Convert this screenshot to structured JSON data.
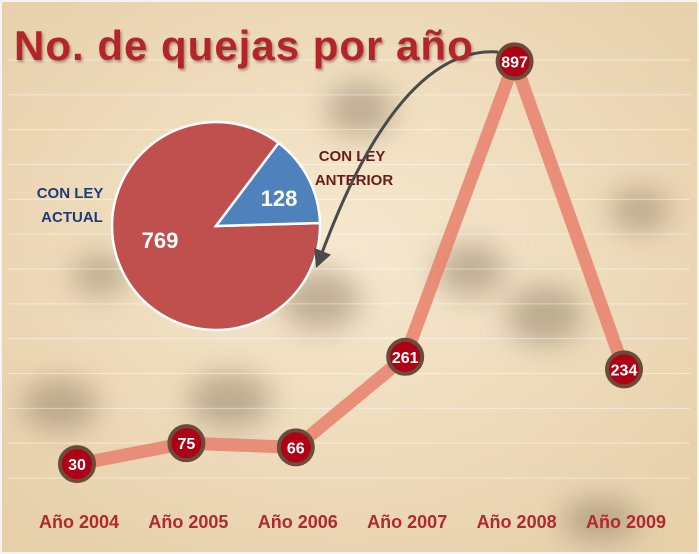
{
  "title": "No. de quejas por año",
  "colors": {
    "title": "#b2282c",
    "line": "#e8806c",
    "marker_fill": "#b00016",
    "marker_ring": "#6b4c3a",
    "pie_actual": "#c0504d",
    "pie_anterior": "#4f81bd",
    "label_actual": "#1f3b78",
    "label_anterior": "#6b1a1a",
    "background": "#efdcbc"
  },
  "chart_data": [
    {
      "type": "line",
      "title": "No. de quejas por año",
      "categories": [
        "Año 2004",
        "Año 2005",
        "Año 2006",
        "Año 2007",
        "Año 2008",
        "Año 2009"
      ],
      "values": [
        30,
        75,
        66,
        261,
        897,
        234
      ],
      "data_labels": [
        "30",
        "75",
        "66",
        "261",
        "897",
        "234"
      ],
      "ylim": [
        0,
        900
      ],
      "grid": true,
      "legend": "none"
    },
    {
      "type": "pie",
      "labels": [
        "CON LEY ACTUAL",
        "CON LEY ANTERIOR"
      ],
      "label_lines": [
        [
          "CON LEY",
          "ACTUAL"
        ],
        [
          "CON LEY",
          "ANTERIOR"
        ]
      ],
      "values": [
        769,
        128
      ],
      "data_labels": [
        "769",
        "128"
      ],
      "total": 897
    }
  ]
}
